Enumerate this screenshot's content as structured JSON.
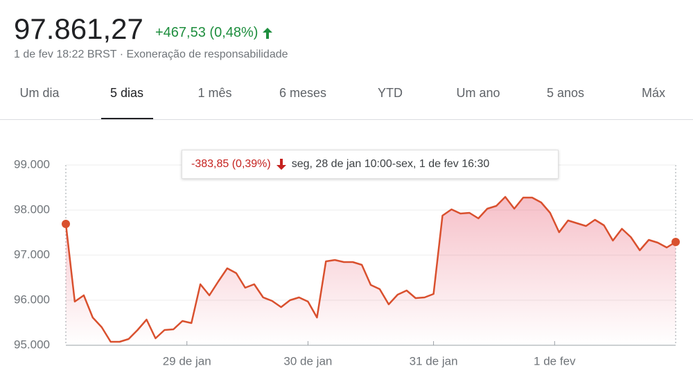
{
  "header": {
    "price": "97.861,27",
    "change": "+467,53 (0,48%)",
    "note": "1 de fev 18:22 BRST · Exoneração de responsabilidade",
    "tabs": [
      "Um dia",
      "5 dias",
      "1 mês",
      "6 meses",
      "YTD",
      "Um ano",
      "5 anos",
      "Máx"
    ],
    "selected_tab": 1
  },
  "tooltip": {
    "change": "-383,85 (0,39%)",
    "range": "seg, 28 de jan 10:00-sex, 1 de fev 16:30"
  },
  "chart_data": {
    "type": "line",
    "color": "#d9502e",
    "values": [
      97692,
      95969,
      96108,
      95615,
      95400,
      95077,
      95077,
      95138,
      95338,
      95569,
      95154,
      95338,
      95354,
      95538,
      95492,
      96354,
      96108,
      96415,
      96708,
      96600,
      96277,
      96354,
      96062,
      95985,
      95846,
      96000,
      96062,
      95969,
      95615,
      96862,
      96892,
      96846,
      96846,
      96785,
      96338,
      96246,
      95908,
      96123,
      96215,
      96046,
      96062,
      96138,
      97877,
      98015,
      97923,
      97938,
      97815,
      98031,
      98092,
      98292,
      98031,
      98277,
      98277,
      98169,
      97938,
      97508,
      97769,
      97708,
      97646,
      97785,
      97662,
      97323,
      97585,
      97400,
      97108,
      97338,
      97277,
      97169,
      97292
    ],
    "ylim": [
      95000,
      99000
    ],
    "yticks": [
      {
        "value": 95000,
        "label": "95.000"
      },
      {
        "value": 96000,
        "label": "96.000"
      },
      {
        "value": 97000,
        "label": "97.000"
      },
      {
        "value": 98000,
        "label": "98.000"
      },
      {
        "value": 99000,
        "label": "99.000"
      }
    ],
    "xlim": [
      0,
      68
    ],
    "xticks": [
      {
        "value": 13.5,
        "label": "29 de jan"
      },
      {
        "value": 27,
        "label": "30 de jan"
      },
      {
        "value": 41,
        "label": "31 de jan"
      },
      {
        "value": 54.5,
        "label": "1 de fev"
      }
    ],
    "grid": true
  }
}
